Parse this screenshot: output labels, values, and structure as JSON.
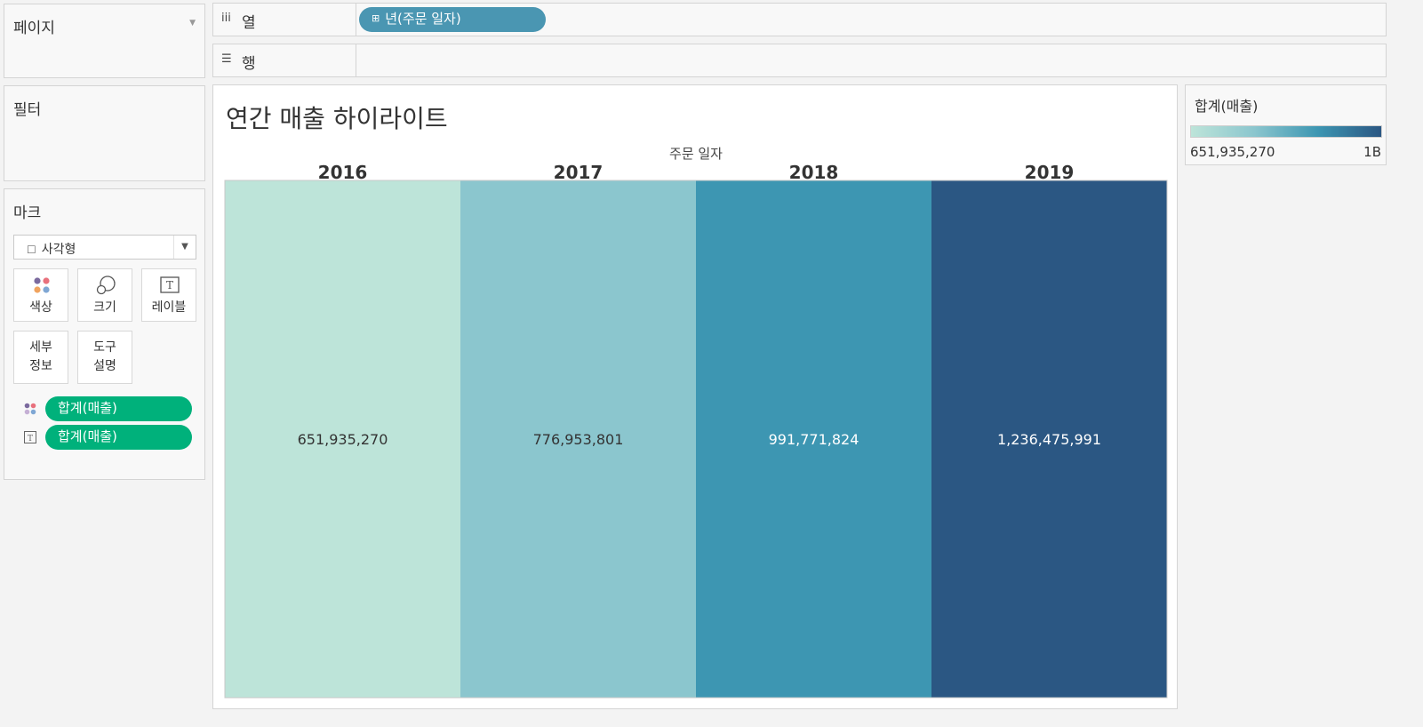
{
  "panels": {
    "pages": {
      "title": "페이지"
    },
    "filters": {
      "title": "필터"
    },
    "marks": {
      "title": "마크",
      "mark_type": "사각형",
      "buttons": {
        "color": "색상",
        "size": "크기",
        "label": "레이블",
        "detail_1": "세부",
        "detail_2": "정보",
        "tooltip_1": "도구",
        "tooltip_2": "설명"
      },
      "pills": [
        {
          "label": "합계(매출)",
          "icon": "color-icon"
        },
        {
          "label": "합계(매출)",
          "icon": "text-icon"
        }
      ]
    }
  },
  "shelves": {
    "columns": {
      "icon": "columns-icon",
      "label": "열",
      "pill": "년(주문 일자)",
      "pill_color": "#4a96b2"
    },
    "rows": {
      "icon": "rows-icon",
      "label": "행"
    }
  },
  "view": {
    "title": "연간 매출 하이라이트",
    "axis_title": "주문 일자"
  },
  "legend": {
    "title": "합계(매출)",
    "min_label": "651,935,270",
    "max_label": "1B"
  },
  "chart_data": {
    "type": "heatmap",
    "x_title": "주문 일자",
    "categories": [
      "2016",
      "2017",
      "2018",
      "2019"
    ],
    "values": [
      651935270,
      776953801,
      991771824,
      1236475991
    ],
    "labels": [
      "651,935,270",
      "776,953,801",
      "991,771,824",
      "1,236,475,991"
    ],
    "colors": [
      "#bde4d9",
      "#8bc6ce",
      "#3d96b2",
      "#2b5783"
    ],
    "label_colors": [
      "#333333",
      "#333333",
      "#ffffff",
      "#ffffff"
    ],
    "color_legend": {
      "min": "651,935,270",
      "max": "1B"
    }
  }
}
